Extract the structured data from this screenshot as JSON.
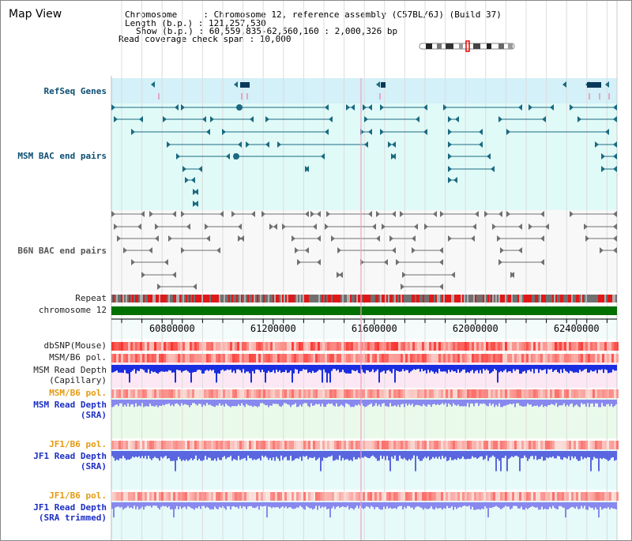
{
  "view": {
    "title": "Map View",
    "info_lines": [
      "Chromosome     : Chromosome 12, reference assembly (C57BL/6J) (Build 37)",
      "Length (b.p.) : 121,257,530",
      "Show (b.p.) : 60,559,835-62,560,160 : 2,000,326 bp",
      "Read coverage check span : 10,000"
    ]
  },
  "tracks": {
    "refseq": "RefSeq Genes",
    "msm_bac": "MSM BAC end pairs",
    "b6n_bac": "B6N BAC end pairs",
    "repeat": "Repeat",
    "chromosome": "chromosome 12",
    "dbsnp": "dbSNP(Mouse)",
    "msm_b6_pol_1": "MSM/B6 pol.",
    "msm_depth_cap_1": "MSM Read Depth",
    "msm_depth_cap_2": "(Capillary)",
    "msm_b6_pol_2": "MSM/B6 pol.",
    "msm_depth_sra_1": "MSM Read Depth",
    "msm_depth_sra_2": "(SRA)",
    "jf1_b6_pol_1": "JF1/B6 pol.",
    "jf1_depth_sra_1": "JF1 Read Depth",
    "jf1_depth_sra_2": "(SRA)",
    "jf1_b6_pol_2": "JF1/B6 pol.",
    "jf1_depth_trim_1": "JF1 Read Depth",
    "jf1_depth_trim_2": "(SRA trimmed)"
  },
  "axis": {
    "ticks": [
      {
        "value": 60800000,
        "label": "60800000"
      },
      {
        "value": 61200000,
        "label": "61200000"
      },
      {
        "value": 61600000,
        "label": "61600000"
      },
      {
        "value": 62000000,
        "label": "62000000"
      },
      {
        "value": 62400000,
        "label": "62400000"
      }
    ]
  },
  "colors": {
    "refseq_band": "#d4f0f8",
    "msm_band": "#e0faf8",
    "b6n_band": "#f8f8f8",
    "teal_feature": "#1a6a80",
    "gray_feature": "#707070",
    "chromosome_bar": "#007000",
    "depth_blue": "#1a2ee0",
    "depth_light": "#8888ee",
    "pink_band": "#fce8f4",
    "green_band": "#eafaea",
    "cyan_band": "#e6fafa",
    "highlight": "#f06090"
  }
}
